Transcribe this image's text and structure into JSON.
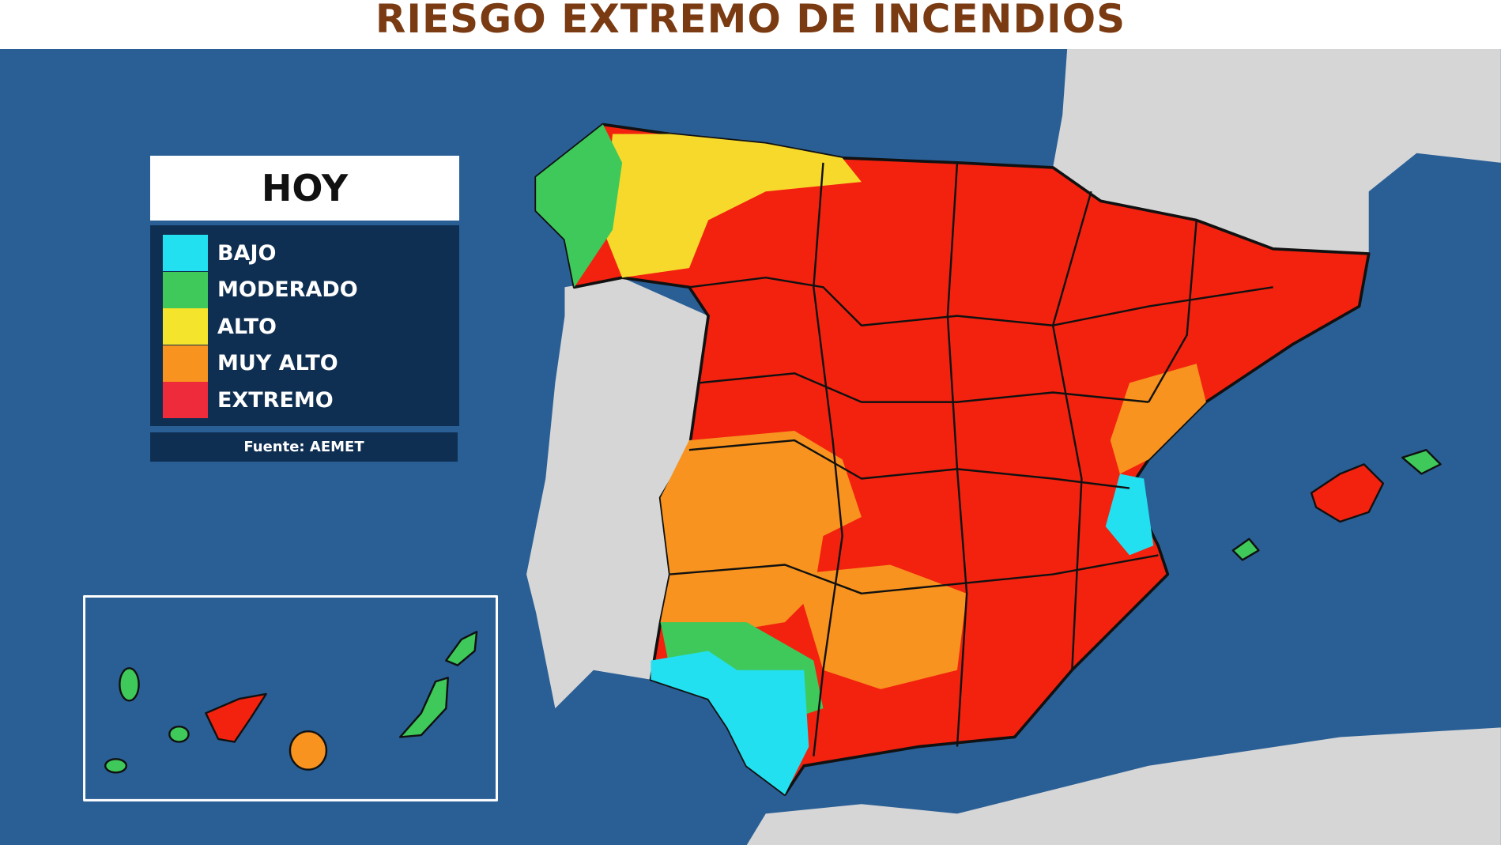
{
  "title": "RIESGO EXTREMO DE INCENDIOS",
  "legend": {
    "title": "HOY",
    "items": [
      {
        "label": "BAJO",
        "color": "#22e0f0"
      },
      {
        "label": "MODERADO",
        "color": "#3ec95a"
      },
      {
        "label": "ALTO",
        "color": "#f4e42c"
      },
      {
        "label": "MUY ALTO",
        "color": "#f7931e"
      },
      {
        "label": "EXTREMO",
        "color": "#ee2b3b"
      }
    ],
    "source": "Fuente: AEMET"
  }
}
